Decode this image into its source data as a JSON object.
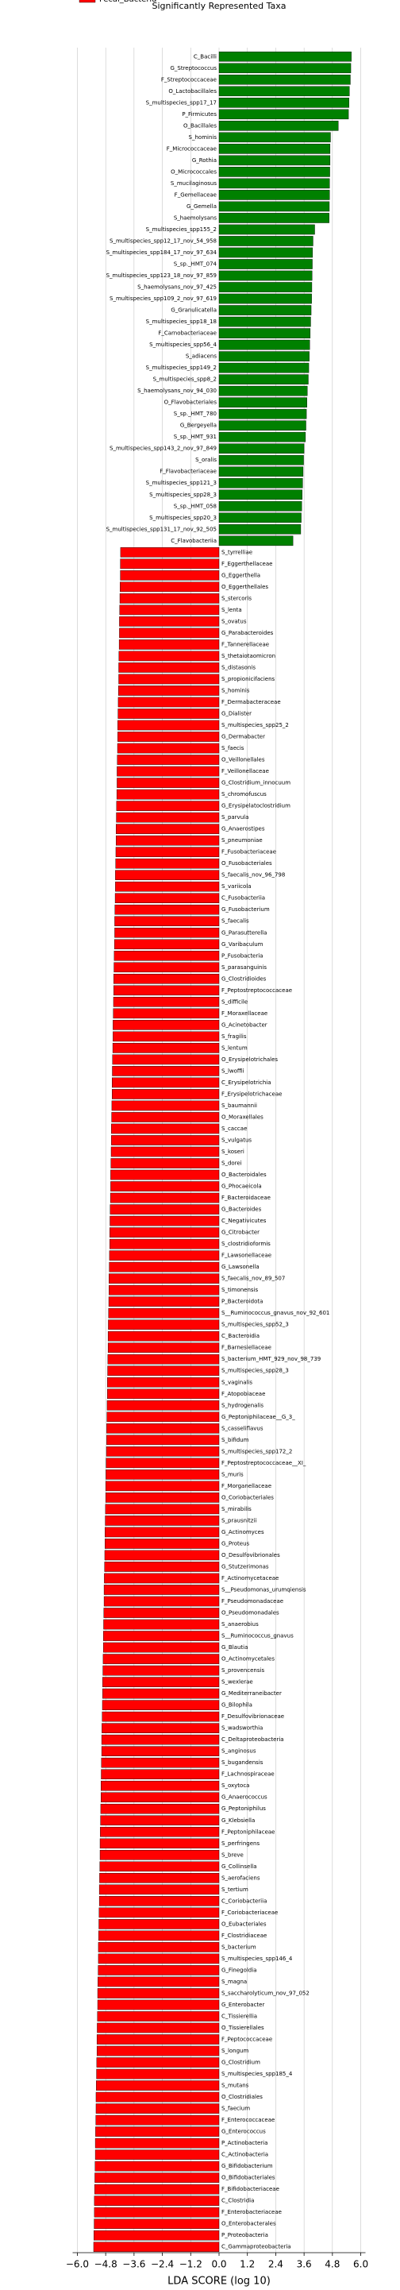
{
  "chart_data": {
    "type": "barh",
    "title": "Significantly Represented Taxa",
    "x_label": "LDA SCORE (log 10)",
    "xlim": [
      -6.2,
      6.2
    ],
    "xticks": [
      {
        "value": -6,
        "label": "−6.0"
      },
      {
        "value": -4.8,
        "label": "−4.8"
      },
      {
        "value": -3.6,
        "label": "−3.6"
      },
      {
        "value": -2.4,
        "label": "−2.4"
      },
      {
        "value": -1.2,
        "label": "−1.2"
      },
      {
        "value": 0,
        "label": "0.0"
      },
      1.2,
      2.4,
      3.6,
      4.8,
      {
        "value": 6,
        "label": "6.0"
      }
    ],
    "grid": true,
    "series": [
      {
        "color": "#008000",
        "categories": [
          "C_Bacilli",
          "G_Streptococcus",
          "F_Streptococcaceae",
          "O_Lactobacillales",
          "S_multispecies_spp17_17",
          "P_Firmicutes",
          "O_Bacillales",
          "S_hominis",
          "F_Micrococcaceae",
          "G_Rothia",
          "O_Micrococcales",
          "S_mucilaginosus",
          "F_Gemellaceae",
          "G_Gemella",
          "S_haemolysans",
          "S_multispecies_spp155_2",
          "S_multispecies_spp12_17_nov_54_958",
          "S_multispecies_spp184_17_nov_97_634",
          "S_sp._HMT_074",
          "S_multispecies_spp123_18_nov_97_859",
          "S_haemolysans_nov_97_425",
          "S_multispecies_spp109_2_nov_97_619",
          "G_Granulicatella",
          "S_multispecies_spp18_18",
          "F_Carnobacteriaceae",
          "S_multispecies_spp56_4",
          "S_adiacens",
          "S_multispecies_spp149_2",
          "S_multispecies_spp8_2",
          "S_haemolysans_nov_94_030",
          "O_Flavobacteriales",
          "S_sp._HMT_780",
          "G_Bergeyella",
          "S_sp._HMT_931",
          "S_multispecies_spp143_2_nov_97_849",
          "S_oralis",
          "F_Flavobacteriaceae",
          "S_multispecies_spp121_3",
          "S_multispecies_spp28_3",
          "S_sp._HMT_058",
          "S_multispecies_spp20_3",
          "S_multispecies_spp131_17_nov_92_505",
          "C_Flavobacteriia"
        ],
        "values": [
          5.6,
          5.58,
          5.56,
          5.52,
          5.5,
          5.48,
          5.05,
          4.72,
          4.7,
          4.7,
          4.69,
          4.68,
          4.68,
          4.67,
          4.66,
          4.05,
          3.98,
          3.96,
          3.95,
          3.94,
          3.93,
          3.92,
          3.9,
          3.88,
          3.86,
          3.84,
          3.82,
          3.8,
          3.78,
          3.74,
          3.72,
          3.7,
          3.68,
          3.66,
          3.6,
          3.58,
          3.56,
          3.54,
          3.52,
          3.5,
          3.48,
          3.46,
          3.13
        ]
      },
      {
        "name": "Fecal_Bacteria",
        "color": "#ff0000",
        "categories": [
          "S_tyrrelliae",
          "F_Eggerthellaceae",
          "G_Eggerthella",
          "O_Eggerthellales",
          "S_stercoris",
          "S_lenta",
          "S_ovatus",
          "G_Parabacteroides",
          "F_Tannerellaceae",
          "S_thetaiotaomicron",
          "S_distasonis",
          "S_propionicifaciens",
          "S_hominis",
          "F_Dermabacteraceae",
          "G_Dialister",
          "S_multispecies_spp25_2",
          "G_Dermabacter",
          "S_faecis",
          "O_Veillonellales",
          "F_Veillonellaceae",
          "G_Clostridium_innocuum",
          "S_chromofuscus",
          "G_Erysipelatoclostridium",
          "S_parvula",
          "G_Anaerostipes",
          "S_pneumoniae",
          "F_Fusobacteriaceae",
          "O_Fusobacteriales",
          "S_faecalis_nov_96_798",
          "S_variicola",
          "C_Fusobacteriia",
          "G_Fusobacterium",
          "S_faecalis",
          "G_Parasutterella",
          "G_Varibaculum",
          "P_Fusobacteria",
          "S_parasanguinis",
          "G_Clostridioides",
          "F_Peptostreptococcaceae",
          "S_difficile",
          "F_Moraxellaceae",
          "G_Acinetobacter",
          "S_fragilis",
          "S_lentum",
          "O_Erysipelotrichales",
          "S_lwoffii",
          "C_Erysipelotrichia",
          "F_Erysipelotrichaceae",
          "S_baumannii",
          "O_Moraxellales",
          "S_caccae",
          "S_vulgatus",
          "S_koseri",
          "S_dorei",
          "O_Bacteroidales",
          "G_Phocaeicola",
          "F_Bacteroidaceae",
          "G_Bacteroides",
          "C_Negativicutes",
          "G_Citrobacter",
          "S_clostridioformis",
          "F_Lawsonellaceae",
          "G_Lawsonella",
          "S_faecalis_nov_89_507",
          "S_timonensis",
          "P_Bacteroidota",
          "S__Ruminococcus_gnavus_nov_92_601",
          "S_multispecies_spp52_3",
          "C_Bacteroidia",
          "F_Barnesiellaceae",
          "S_bacterium_HMT_929_nov_98_739",
          "S_multispecies_spp28_3",
          "S_vaginalis",
          "F_Atopobiaceae",
          "S_hydrogenalis",
          "G_Peptoniphilaceae__G_3_",
          "S_casseliflavus",
          "S_bifidum",
          "S_multispecies_spp172_2",
          "F_Peptostreptococcaceae__XI_",
          "S_muris",
          "F_Morganellaceae",
          "O_Coriobacteriales",
          "S_mirabilis",
          "S_prausnitzii",
          "G_Actinomyces",
          "G_Proteus",
          "O_Desulfovibrionales",
          "G_Stutzerimonas",
          "F_Actinomycetaceae",
          "S__Pseudomonas_urumqiensis",
          "F_Pseudomonadaceae",
          "O_Pseudomonadales",
          "S_anaerobius",
          "S__Ruminococcus_gnavus",
          "G_Blautia",
          "O_Actinomycetales",
          "S_provencensis",
          "S_wexlerae",
          "G_Mediterraneibacter",
          "G_Bilophila",
          "F_Desulfovibrionaceae",
          "S_wadsworthia",
          "C_Deltaproteobacteria",
          "S_anginosus",
          "S_bugandensis",
          "F_Lachnospiraceae",
          "S_oxytoca",
          "G_Anaerococcus",
          "G_Peptoniphilus",
          "G_Klebsiella",
          "F_Peptoniphilaceae",
          "S_perfringens",
          "S_breve",
          "G_Collinsella",
          "S_aerofaciens",
          "S_tertium",
          "C_Coriobacteriia",
          "F_Coriobacteriaceae",
          "O_Eubacteriales",
          "F_Clostridiaceae",
          "S_bacterium",
          "S_multispecies_spp146_4",
          "G_Finegoldia",
          "S_magna",
          "S_saccharolyticum_nov_97_052",
          "G_Enterobacter",
          "C_Tissierellia",
          "O_Tissierellales",
          "F_Peptococcaceae",
          "S_longum",
          "G_Clostridium",
          "S_multispecies_spp185_4",
          "S_mutans",
          "O_Clostridiales",
          "S_faecium",
          "F_Enterococcaceae",
          "G_Enterococcus",
          "P_Actinobacteria",
          "C_Actinobacteria",
          "G_Bifidobacterium",
          "O_Bifidobacteriales",
          "F_Bifidobacteriaceae",
          "C_Clostridia",
          "F_Enterobacteriaceae",
          "O_Enterobacterales",
          "P_Proteobacteria",
          "C_Gammaproteobacteria"
        ],
        "values": [
          -4.17,
          -4.18,
          -4.18,
          -4.19,
          -4.2,
          -4.21,
          -4.22,
          -4.22,
          -4.23,
          -4.24,
          -4.25,
          -4.25,
          -4.26,
          -4.27,
          -4.28,
          -4.29,
          -4.29,
          -4.3,
          -4.31,
          -4.32,
          -4.32,
          -4.33,
          -4.34,
          -4.35,
          -4.36,
          -4.36,
          -4.37,
          -4.38,
          -4.39,
          -4.39,
          -4.4,
          -4.41,
          -4.42,
          -4.42,
          -4.43,
          -4.44,
          -4.45,
          -4.46,
          -4.46,
          -4.47,
          -4.48,
          -4.49,
          -4.49,
          -4.5,
          -4.51,
          -4.52,
          -4.53,
          -4.53,
          -4.54,
          -4.55,
          -4.56,
          -4.56,
          -4.57,
          -4.58,
          -4.59,
          -4.59,
          -4.6,
          -4.61,
          -4.62,
          -4.63,
          -4.63,
          -4.64,
          -4.65,
          -4.66,
          -4.66,
          -4.67,
          -4.68,
          -4.69,
          -4.7,
          -4.7,
          -4.71,
          -4.72,
          -4.73,
          -4.73,
          -4.74,
          -4.75,
          -4.76,
          -4.76,
          -4.77,
          -4.78,
          -4.79,
          -4.8,
          -4.8,
          -4.81,
          -4.82,
          -4.83,
          -4.83,
          -4.84,
          -4.85,
          -4.86,
          -4.87,
          -4.87,
          -4.88,
          -4.89,
          -4.9,
          -4.9,
          -4.91,
          -4.92,
          -4.93,
          -4.93,
          -4.94,
          -4.95,
          -4.96,
          -4.97,
          -4.97,
          -4.98,
          -4.99,
          -5.0,
          -5.0,
          -5.01,
          -5.02,
          -5.03,
          -5.04,
          -5.04,
          -5.05,
          -5.06,
          -5.07,
          -5.07,
          -5.08,
          -5.09,
          -5.1,
          -5.11,
          -5.11,
          -5.12,
          -5.13,
          -5.14,
          -5.14,
          -5.15,
          -5.16,
          -5.17,
          -5.17,
          -5.18,
          -5.19,
          -5.2,
          -5.21,
          -5.21,
          -5.22,
          -5.23,
          -5.24,
          -5.24,
          -5.25,
          -5.26,
          -5.27,
          -5.28,
          -5.28,
          -5.29,
          -5.3,
          -5.31
        ]
      }
    ]
  }
}
